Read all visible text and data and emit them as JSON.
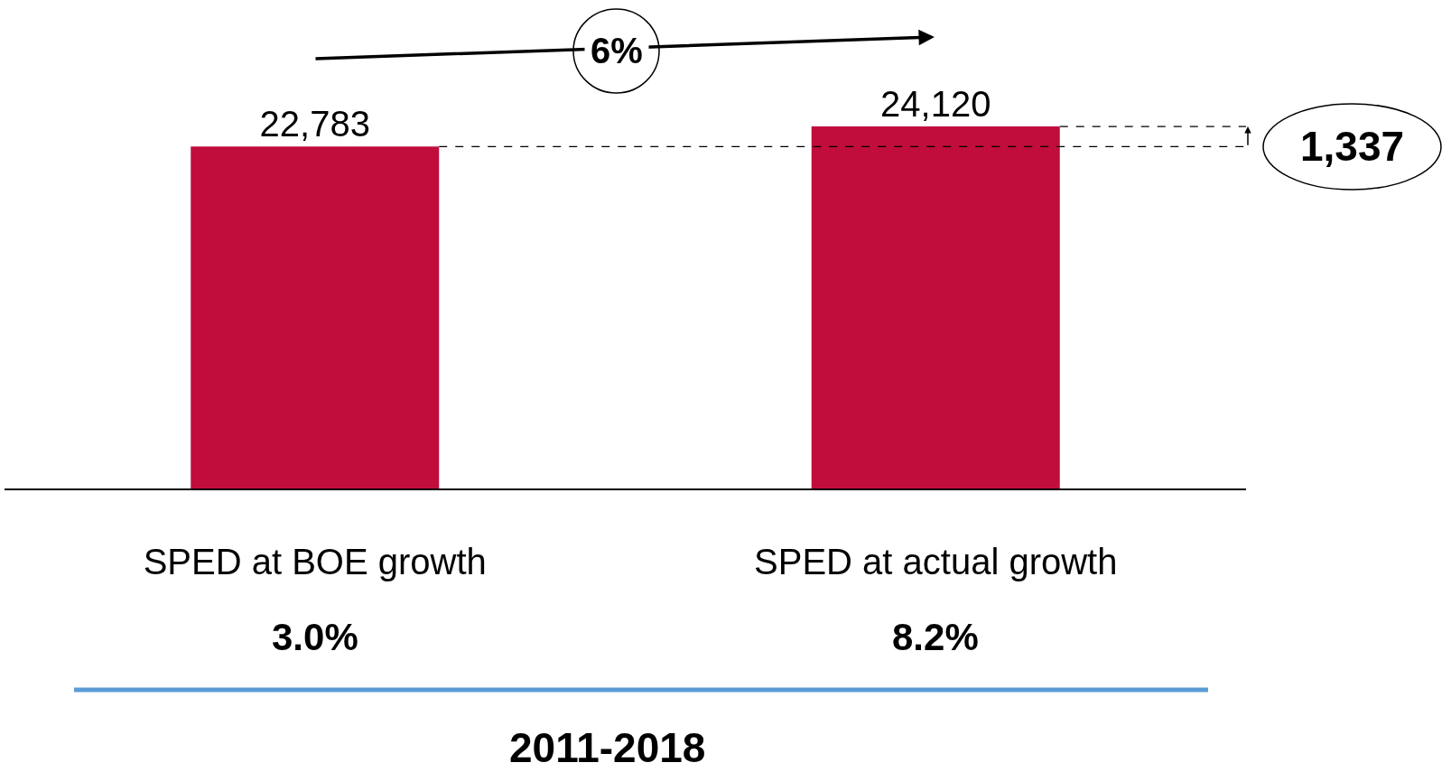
{
  "chart_data": {
    "type": "bar",
    "categories": [
      "SPED at BOE growth",
      "SPED at actual growth"
    ],
    "values": [
      22783,
      24120
    ],
    "value_labels": [
      "22,783",
      "24,120"
    ],
    "color": "#c00d3c",
    "annotations": [
      "3.0%",
      "8.2%",
      "6%",
      "1,337",
      "2011-2018"
    ],
    "ref_lines": [
      {
        "axis": "y",
        "value": 22783,
        "line_style": "dashed",
        "color": "#000000"
      },
      {
        "axis": "y",
        "value": 24120,
        "line_style": "dashed",
        "color": "#000000"
      }
    ]
  }
}
